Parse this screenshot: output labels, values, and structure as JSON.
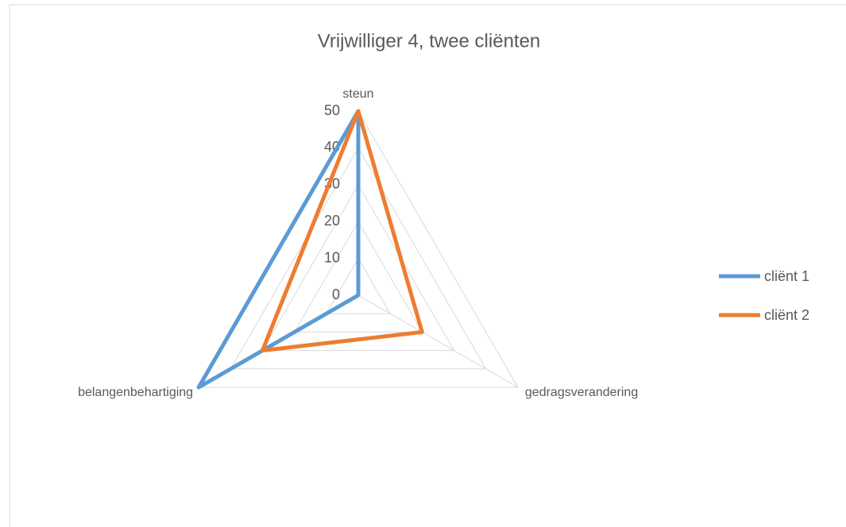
{
  "chart_data": {
    "type": "radar",
    "title": "Vrijwilliger 4, twee cliënten",
    "categories": [
      "steun",
      "gedragsverandering",
      "belangenbehartiging"
    ],
    "series": [
      {
        "name": "cliënt 1",
        "color": "#5b9bd5",
        "values": [
          50,
          0,
          50
        ]
      },
      {
        "name": "cliënt 2",
        "color": "#ed7d31",
        "values": [
          50,
          20,
          30
        ]
      }
    ],
    "rlim": [
      0,
      50
    ],
    "rticks": [
      0,
      10,
      20,
      30,
      40,
      50
    ],
    "grid": true,
    "legend": "right"
  }
}
